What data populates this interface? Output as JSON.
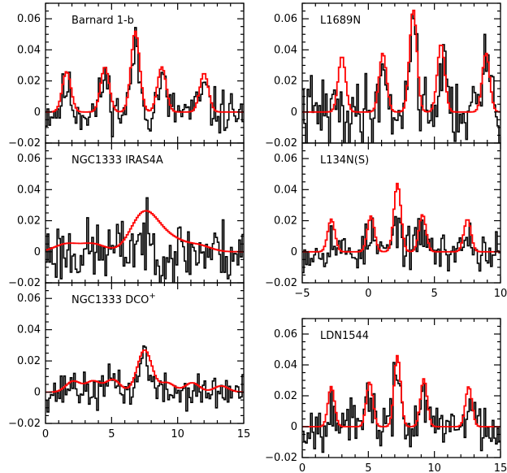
{
  "chart_data": [
    {
      "type": "line",
      "title": "Barnard 1-b",
      "ylim": [
        -0.02,
        0.07
      ],
      "xlim": [
        0,
        15
      ],
      "yticks": [
        "0.06",
        "0.04",
        "0.02",
        "0",
        "−0.02"
      ],
      "xticks": [],
      "colors": {
        "observed": "#000000",
        "model": "#ff0000"
      },
      "series": [
        {
          "peaks": [
            [
              1.6,
              0.026
            ],
            [
              4.5,
              0.029
            ],
            [
              6.8,
              0.052
            ],
            [
              8.8,
              0.029
            ],
            [
              12.0,
              0.025
            ]
          ],
          "width": 0.33,
          "baseline": 0.0
        },
        {
          "peaks": [
            [
              1.6,
              0.016
            ],
            [
              4.5,
              0.022
            ],
            [
              6.8,
              0.04
            ],
            [
              8.8,
              0.02
            ],
            [
              12.0,
              0.014
            ]
          ],
          "width": 0.3,
          "noise": 0.009,
          "seed": 11
        }
      ]
    },
    {
      "type": "line",
      "title": "NGC1333 IRAS4A",
      "ylim": [
        -0.02,
        0.07
      ],
      "xlim": [
        0,
        15
      ],
      "yticks": [
        "0.06",
        "0.04",
        "0.02",
        "0",
        "−0.02"
      ],
      "xticks": [],
      "colors": {
        "observed": "#000000",
        "model": "#ff0000"
      },
      "series": [
        {
          "peaks": [
            [
              1.6,
              0.005
            ],
            [
              3.6,
              0.005
            ],
            [
              7.2,
              0.019
            ],
            [
              8.3,
              0.012
            ],
            [
              9.8,
              0.006
            ],
            [
              11.6,
              0.004
            ]
          ],
          "width": 0.9,
          "baseline": 0.0
        },
        {
          "peaks": [
            [
              7.2,
              0.008
            ]
          ],
          "width": 0.6,
          "noise": 0.013,
          "seed": 23
        }
      ]
    },
    {
      "type": "line",
      "title": "NGC1333 DCO",
      "title_sup": "+",
      "ylim": [
        -0.02,
        0.07
      ],
      "xlim": [
        0,
        15
      ],
      "yticks": [
        "0.06",
        "0.04",
        "0.02",
        "0",
        "−0.02"
      ],
      "xticks": [
        "0",
        "5",
        "10",
        "15"
      ],
      "colors": {
        "observed": "#000000",
        "model": "#ff0000"
      },
      "series": [
        {
          "peaks": [
            [
              2.1,
              0.007
            ],
            [
              3.6,
              0.007
            ],
            [
              5.1,
              0.008
            ],
            [
              7.5,
              0.027
            ],
            [
              9.2,
              0.006
            ],
            [
              11.1,
              0.006
            ],
            [
              13.3,
              0.004
            ]
          ],
          "width": 0.55,
          "baseline": 0.0
        },
        {
          "peaks": [
            [
              7.5,
              0.026
            ],
            [
              5.2,
              0.01
            ],
            [
              2.0,
              0.006
            ]
          ],
          "width": 0.35,
          "noise": 0.007,
          "seed": 37
        }
      ]
    },
    {
      "type": "line",
      "title": "L1689N",
      "ylim": [
        -0.02,
        0.07
      ],
      "xlim": [
        -5,
        10
      ],
      "yticks": [
        "0.06",
        "0.04",
        "0.02",
        "0",
        "−0.02"
      ],
      "xticks": [],
      "colors": {
        "observed": "#000000",
        "model": "#ff0000"
      },
      "series": [
        {
          "peaks": [
            [
              -2.0,
              0.036
            ],
            [
              1.1,
              0.038
            ],
            [
              3.4,
              0.066
            ],
            [
              5.5,
              0.044
            ],
            [
              8.9,
              0.038
            ]
          ],
          "width": 0.28,
          "baseline": 0.0
        },
        {
          "peaks": [
            [
              1.1,
              0.025
            ],
            [
              3.4,
              0.058
            ],
            [
              5.6,
              0.03
            ],
            [
              9.0,
              0.035
            ]
          ],
          "width": 0.3,
          "noise": 0.014,
          "seed": 41
        }
      ]
    },
    {
      "type": "line",
      "title": "L134N(S)",
      "ylim": [
        -0.02,
        0.07
      ],
      "xlim": [
        -5,
        10
      ],
      "yticks": [
        "0.06",
        "0.04",
        "0.02",
        "0",
        "−0.02"
      ],
      "xticks": [
        "−5",
        "0",
        "5",
        "10"
      ],
      "colors": {
        "observed": "#000000",
        "model": "#ff0000"
      },
      "series": [
        {
          "peaks": [
            [
              -2.8,
              0.021
            ],
            [
              0.2,
              0.023
            ],
            [
              2.2,
              0.044
            ],
            [
              4.1,
              0.024
            ],
            [
              7.5,
              0.021
            ]
          ],
          "width": 0.27,
          "baseline": 0.0
        },
        {
          "peaks": [
            [
              -2.8,
              0.008
            ],
            [
              0.2,
              0.01
            ],
            [
              2.2,
              0.018
            ],
            [
              4.1,
              0.015
            ],
            [
              7.5,
              0.01
            ]
          ],
          "width": 0.3,
          "noise": 0.008,
          "seed": 53
        }
      ]
    },
    {
      "type": "line",
      "title": "LDN1544",
      "ylim": [
        -0.02,
        0.07
      ],
      "xlim": [
        0,
        15
      ],
      "yticks": [
        "0.06",
        "0.04",
        "0.02",
        "0",
        "−0.02"
      ],
      "xticks": [
        "0",
        "5",
        "10",
        "15"
      ],
      "colors": {
        "observed": "#000000",
        "model": "#ff0000"
      },
      "series": [
        {
          "peaks": [
            [
              2.2,
              0.026
            ],
            [
              5.1,
              0.029
            ],
            [
              7.2,
              0.046
            ],
            [
              9.2,
              0.031
            ],
            [
              12.6,
              0.026
            ]
          ],
          "width": 0.25,
          "baseline": 0.0
        },
        {
          "peaks": [
            [
              2.2,
              0.02
            ],
            [
              5.1,
              0.022
            ],
            [
              7.2,
              0.035
            ],
            [
              9.2,
              0.02
            ],
            [
              12.6,
              0.016
            ]
          ],
          "width": 0.25,
          "noise": 0.01,
          "seed": 67
        }
      ]
    }
  ]
}
